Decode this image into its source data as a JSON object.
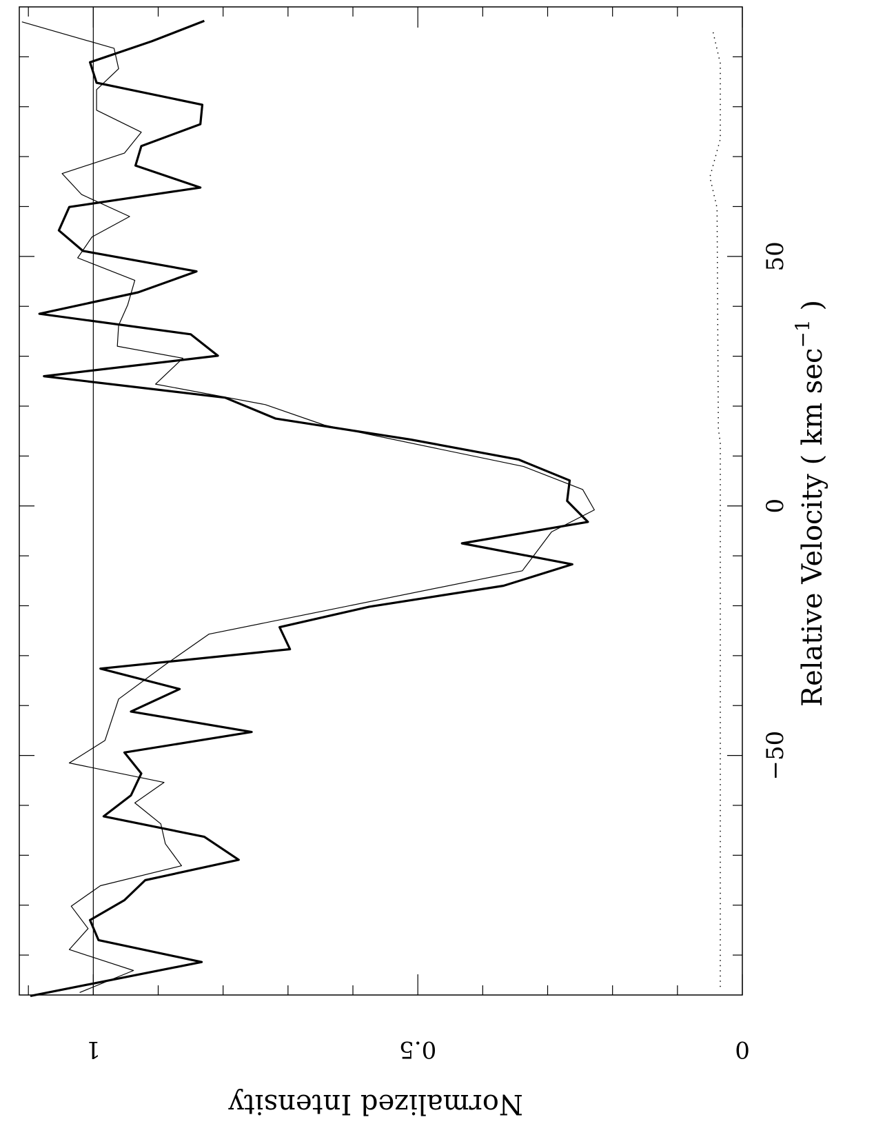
{
  "chart_data": {
    "type": "line",
    "orientation": "rotated",
    "xlabel": {
      "text": "Relative Velocity ( km sec",
      "sup": "−1",
      "end": " )"
    },
    "ylabel": "Normalized Intensity",
    "xlim": [
      -98,
      100
    ],
    "ylim": [
      0,
      1.114
    ],
    "xticks": [
      {
        "value": -90,
        "label": null
      },
      {
        "value": -80,
        "label": null
      },
      {
        "value": -70,
        "label": null
      },
      {
        "value": -60,
        "label": null
      },
      {
        "value": -50,
        "label": "−50"
      },
      {
        "value": -40,
        "label": null
      },
      {
        "value": -30,
        "label": null
      },
      {
        "value": -20,
        "label": null
      },
      {
        "value": -10,
        "label": null
      },
      0,
      {
        "value": 10,
        "label": null
      },
      {
        "value": 20,
        "label": null
      },
      {
        "value": 30,
        "label": null
      },
      {
        "value": 40,
        "label": null
      },
      50,
      {
        "value": 60,
        "label": null
      },
      {
        "value": 70,
        "label": null
      },
      {
        "value": 80,
        "label": null
      },
      {
        "value": 90,
        "label": null
      }
    ],
    "yticks": [
      0,
      {
        "value": 0.1,
        "label": null
      },
      {
        "value": 0.2,
        "label": null
      },
      {
        "value": 0.3,
        "label": null
      },
      {
        "value": 0.4,
        "label": null
      },
      0.5,
      {
        "value": 0.6,
        "label": null
      },
      {
        "value": 0.7,
        "label": null
      },
      {
        "value": 0.8,
        "label": null
      },
      {
        "value": 0.9,
        "label": null
      },
      1,
      {
        "value": 1.1,
        "label": null
      }
    ],
    "reference_line": 1,
    "series": [
      {
        "color": "#000000",
        "line_width": 3.2,
        "dash": null,
        "x": [
          97.2,
          93.1,
          88.9,
          84.8,
          80.4,
          76.5,
          72.1,
          68.2,
          63.8,
          59.9,
          55.2,
          51.1,
          47.0,
          42.8,
          38.5,
          34.4,
          30.1,
          26.0,
          21.7,
          17.5,
          13.3,
          9.3,
          5.1,
          1.0,
          -3.2,
          -7.5,
          -11.7,
          -16.0,
          -20.2,
          -24.3,
          -28.7,
          -32.6,
          -36.7,
          -41.2,
          -45.3,
          -49.4,
          -53.6,
          -58.0,
          -62.2,
          -66.3,
          -70.9,
          -75.0,
          -79.0,
          -83.0,
          -87.0,
          -91.4,
          -98.2
        ],
        "values": [
          0.829,
          0.91,
          1.005,
          0.995,
          0.832,
          0.835,
          0.926,
          0.935,
          0.835,
          1.037,
          1.053,
          1.016,
          0.841,
          0.931,
          1.083,
          0.85,
          0.808,
          1.076,
          0.797,
          0.719,
          0.511,
          0.345,
          0.266,
          0.27,
          0.238,
          0.432,
          0.262,
          0.368,
          0.575,
          0.713,
          0.697,
          0.989,
          0.867,
          0.942,
          0.756,
          0.952,
          0.926,
          0.942,
          0.984,
          0.829,
          0.776,
          0.92,
          0.952,
          1.005,
          0.992,
          0.833,
          1.097
        ]
      },
      {
        "color": "#000000",
        "line_width": 1.2,
        "dash": null,
        "x": [
          97.0,
          91.7,
          87.6,
          83.4,
          79.3,
          74.9,
          70.7,
          66.6,
          62.4,
          58.0,
          53.9,
          49.7,
          45.2,
          40.3,
          36.2,
          32.0,
          29.6,
          24.4,
          20.3,
          16.2,
          7.9,
          3.3,
          -0.8,
          -5.2,
          -13.0,
          -25.7,
          -31.8,
          -38.7,
          -47.0,
          -51.5,
          -55.4,
          -59.5,
          -63.7,
          -67.7,
          -72.1,
          -76.1,
          -80.2,
          -84.7,
          -88.9,
          -93.1,
          -97.5
        ],
        "values": [
          1.11,
          0.968,
          0.961,
          0.995,
          0.995,
          0.926,
          0.952,
          1.048,
          1.018,
          0.944,
          1.002,
          1.024,
          0.936,
          0.947,
          0.961,
          0.963,
          0.862,
          0.904,
          0.735,
          0.644,
          0.337,
          0.246,
          0.228,
          0.294,
          0.339,
          0.822,
          0.889,
          0.961,
          0.982,
          1.037,
          0.891,
          0.936,
          0.896,
          0.889,
          0.864,
          0.989,
          1.034,
          1.008,
          1.037,
          0.938,
          1.021
        ]
      },
      {
        "color": "#000000",
        "line_width": 1.2,
        "dash": "dotted",
        "x": [
          94.9,
          88.7,
          73.5,
          65.9,
          59.7,
          15.5,
          12.7,
          -96.4
        ],
        "values": [
          0.045,
          0.034,
          0.034,
          0.05,
          0.039,
          0.037,
          0.034,
          0.034
        ]
      }
    ]
  }
}
